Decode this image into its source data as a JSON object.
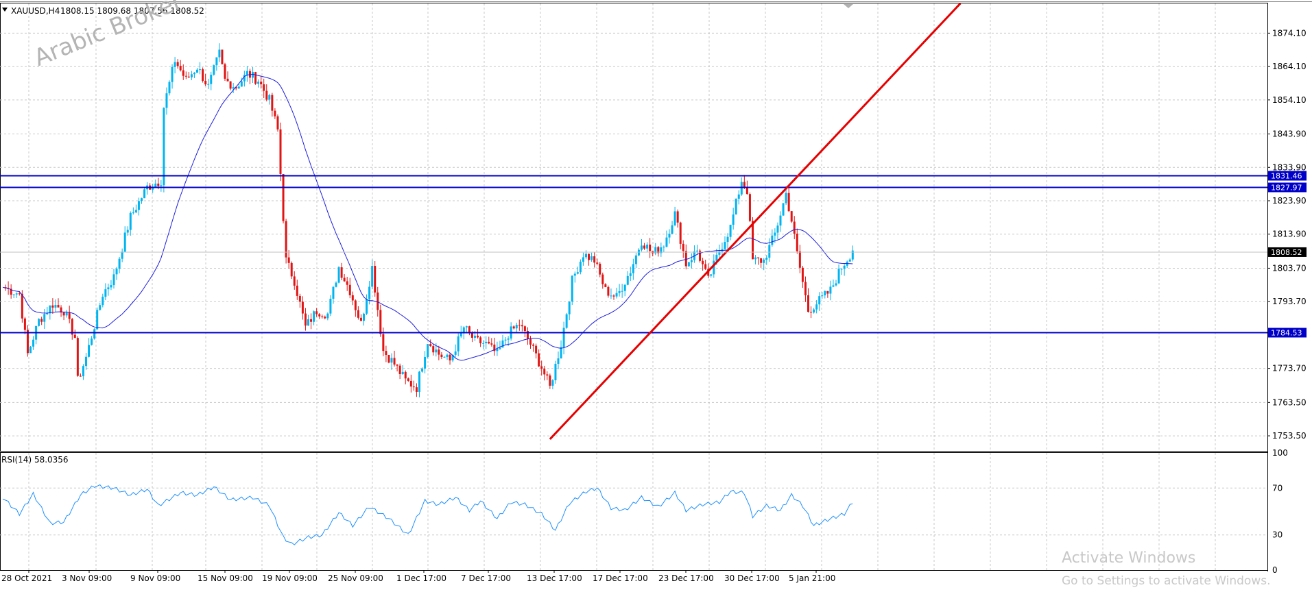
{
  "header": {
    "symbol_label": "XAUUSD,H4",
    "ohlc": "1808.15 1809.68 1807.56 1808.52"
  },
  "brand_watermark": "Arabic Broker",
  "activation": {
    "title": "Activate Windows",
    "subtitle": "Go to Settings to activate Windows."
  },
  "colors": {
    "bull": "#00b4f0",
    "bear": "#e11414",
    "ma": "#1e1ee0",
    "level": "#0000c8",
    "trendline": "#e60000",
    "grid": "#c8c8c8",
    "rsi": "#1e90ff"
  },
  "chart_data": [
    {
      "type": "candlestick",
      "title": "XAUUSD,H4",
      "ylim": [
        1749,
        1883
      ],
      "y_ticks": [
        "1874.10",
        "1864.10",
        "1854.10",
        "1843.90",
        "1833.90",
        "1823.90",
        "1813.90",
        "1803.70",
        "1793.70",
        "1773.70",
        "1763.50",
        "1753.50"
      ],
      "x_ticks": [
        "28 Oct 2021",
        "3 Nov 09:00",
        "9 Nov 09:00",
        "15 Nov 09:00",
        "19 Nov 09:00",
        "25 Nov 09:00",
        "1 Dec 17:00",
        "7 Dec 17:00",
        "13 Dec 17:00",
        "17 Dec 17:00",
        "23 Dec 17:00",
        "30 Dec 17:00",
        "5 Jan 21:00"
      ],
      "price_anchors": [
        [
          0,
          1798
        ],
        [
          6,
          1796
        ],
        [
          9,
          1778
        ],
        [
          13,
          1788
        ],
        [
          18,
          1793
        ],
        [
          22,
          1791
        ],
        [
          26,
          1783
        ],
        [
          27,
          1770
        ],
        [
          30,
          1777
        ],
        [
          36,
          1796
        ],
        [
          40,
          1801
        ],
        [
          46,
          1819
        ],
        [
          52,
          1828
        ],
        [
          57,
          1830
        ],
        [
          58,
          1852
        ],
        [
          62,
          1866
        ],
        [
          66,
          1860
        ],
        [
          70,
          1864
        ],
        [
          74,
          1858
        ],
        [
          78,
          1868
        ],
        [
          80,
          1860
        ],
        [
          84,
          1858
        ],
        [
          88,
          1862
        ],
        [
          92,
          1860
        ],
        [
          96,
          1854
        ],
        [
          99,
          1845
        ],
        [
          102,
          1806
        ],
        [
          105,
          1800
        ],
        [
          109,
          1786
        ],
        [
          113,
          1791
        ],
        [
          117,
          1790
        ],
        [
          121,
          1804
        ],
        [
          125,
          1797
        ],
        [
          129,
          1787
        ],
        [
          133,
          1804
        ],
        [
          137,
          1779
        ],
        [
          141,
          1775
        ],
        [
          145,
          1770
        ],
        [
          149,
          1768
        ],
        [
          153,
          1782
        ],
        [
          157,
          1778
        ],
        [
          161,
          1776
        ],
        [
          166,
          1786
        ],
        [
          170,
          1782
        ],
        [
          174,
          1781
        ],
        [
          178,
          1778
        ],
        [
          182,
          1784
        ],
        [
          186,
          1787
        ],
        [
          190,
          1781
        ],
        [
          194,
          1774
        ],
        [
          197,
          1768
        ],
        [
          201,
          1781
        ],
        [
          205,
          1800
        ],
        [
          209,
          1808
        ],
        [
          213,
          1806
        ],
        [
          217,
          1797
        ],
        [
          221,
          1795
        ],
        [
          226,
          1803
        ],
        [
          230,
          1812
        ],
        [
          234,
          1808
        ],
        [
          238,
          1811
        ],
        [
          242,
          1820
        ],
        [
          246,
          1805
        ],
        [
          250,
          1809
        ],
        [
          254,
          1800
        ],
        [
          258,
          1809
        ],
        [
          262,
          1816
        ],
        [
          266,
          1830
        ],
        [
          268,
          1827
        ],
        [
          270,
          1806
        ],
        [
          274,
          1806
        ],
        [
          278,
          1814
        ],
        [
          282,
          1826
        ],
        [
          284,
          1818
        ],
        [
          286,
          1808
        ],
        [
          290,
          1791
        ],
        [
          294,
          1794
        ],
        [
          298,
          1797
        ],
        [
          302,
          1804
        ],
        [
          306,
          1809
        ]
      ],
      "last_price": "1808.52",
      "horizontal_levels": [
        "1831.46",
        "1827.97",
        "1784.53"
      ],
      "series": [
        {
          "name": "",
          "description": "moving average"
        }
      ]
    },
    {
      "type": "line",
      "title": "RSI(14) 58.0356",
      "ylim": [
        0,
        100
      ],
      "y_ticks": [
        "100",
        "70",
        "30",
        "0"
      ],
      "rsi_anchors": [
        [
          0,
          62
        ],
        [
          6,
          48
        ],
        [
          11,
          65
        ],
        [
          17,
          40
        ],
        [
          22,
          41
        ],
        [
          28,
          64
        ],
        [
          33,
          72
        ],
        [
          40,
          70
        ],
        [
          46,
          64
        ],
        [
          52,
          69
        ],
        [
          56,
          55
        ],
        [
          64,
          66
        ],
        [
          70,
          64
        ],
        [
          76,
          71
        ],
        [
          82,
          60
        ],
        [
          90,
          62
        ],
        [
          96,
          55
        ],
        [
          101,
          28
        ],
        [
          104,
          22
        ],
        [
          110,
          28
        ],
        [
          115,
          30
        ],
        [
          121,
          49
        ],
        [
          126,
          38
        ],
        [
          132,
          54
        ],
        [
          139,
          44
        ],
        [
          146,
          30
        ],
        [
          152,
          59
        ],
        [
          157,
          56
        ],
        [
          163,
          62
        ],
        [
          168,
          51
        ],
        [
          172,
          59
        ],
        [
          178,
          44
        ],
        [
          183,
          58
        ],
        [
          188,
          56
        ],
        [
          194,
          48
        ],
        [
          199,
          34
        ],
        [
          204,
          57
        ],
        [
          210,
          67
        ],
        [
          214,
          70
        ],
        [
          219,
          53
        ],
        [
          224,
          51
        ],
        [
          230,
          62
        ],
        [
          236,
          54
        ],
        [
          242,
          66
        ],
        [
          246,
          51
        ],
        [
          252,
          56
        ],
        [
          258,
          58
        ],
        [
          262,
          67
        ],
        [
          267,
          66
        ],
        [
          270,
          46
        ],
        [
          275,
          55
        ],
        [
          280,
          51
        ],
        [
          284,
          64
        ],
        [
          288,
          55
        ],
        [
          292,
          38
        ],
        [
          297,
          43
        ],
        [
          303,
          48
        ],
        [
          306,
          58
        ]
      ]
    }
  ]
}
